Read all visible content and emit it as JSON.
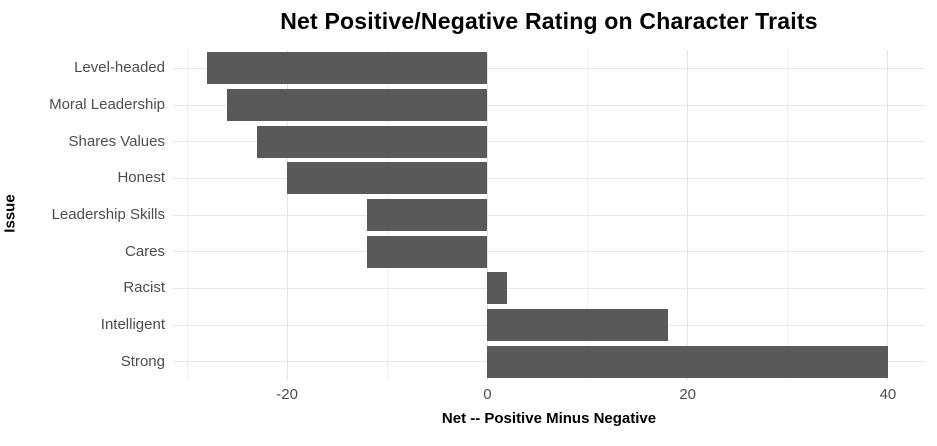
{
  "chart_data": {
    "type": "bar",
    "orientation": "horizontal",
    "title": "Net Positive/Negative Rating on Character Traits",
    "xlabel": "Net -- Positive Minus Negative",
    "ylabel": "Issue",
    "categories": [
      "Level-headed",
      "Moral Leadership",
      "Shares Values",
      "Honest",
      "Leadership Skills",
      "Cares",
      "Racist",
      "Intelligent",
      "Strong"
    ],
    "values": [
      -28,
      -26,
      -23,
      -20,
      -12,
      -12,
      2,
      18,
      40
    ],
    "xlim": [
      -31.4,
      43.7
    ],
    "x_major_ticks": [
      -20,
      0,
      20,
      40
    ],
    "x_minor_ticks": [
      -30,
      -10,
      10,
      30
    ],
    "x_tick_labels": [
      "-20",
      "0",
      "20",
      "40"
    ],
    "grid": "on",
    "legend": "none",
    "bar_color": "#595959",
    "background_color": "#ffffff",
    "major_grid_color": "#e3e3e3",
    "minor_grid_color": "#f0f0f0",
    "tick_label_color": "#4d4d4d",
    "title_color": "#000000",
    "bar_width_fraction": 0.87
  }
}
